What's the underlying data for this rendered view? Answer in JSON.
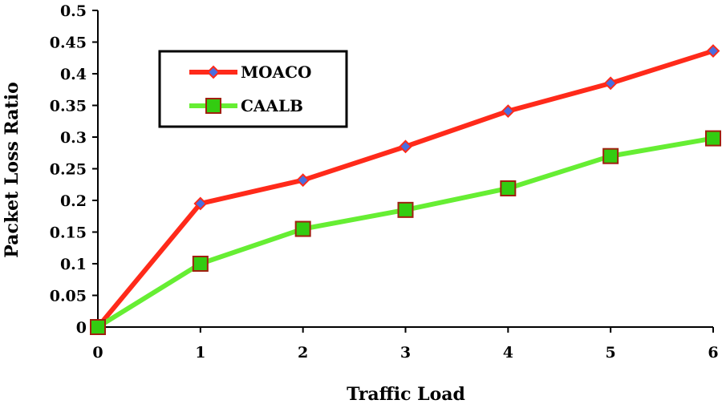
{
  "chart_data": {
    "type": "line",
    "title": "",
    "xlabel": "Traffic Load",
    "ylabel": "Packet Loss Ratio",
    "x": [
      0,
      1,
      2,
      3,
      4,
      5,
      6
    ],
    "xlim": [
      0,
      6
    ],
    "ylim": [
      0,
      0.5
    ],
    "xticks": [
      "0",
      "1",
      "2",
      "3",
      "4",
      "5",
      "6"
    ],
    "yticks": [
      "0",
      "0.05",
      "0.1",
      "0.15",
      "0.2",
      "0.25",
      "0.3",
      "0.35",
      "0.4",
      "0.45",
      "0.5"
    ],
    "grid": false,
    "legend_position": "top-left",
    "series": [
      {
        "name": "MOACO",
        "values": [
          0,
          0.195,
          0.232,
          0.285,
          0.341,
          0.385,
          0.436
        ],
        "line_color": "#ff2a1a",
        "marker": "diamond",
        "marker_fill": "#4a6ee0",
        "marker_stroke": "#ff2a1a"
      },
      {
        "name": "CAALB",
        "values": [
          0,
          0.1,
          0.155,
          0.185,
          0.219,
          0.27,
          0.298
        ],
        "line_color": "#66ee33",
        "marker": "square",
        "marker_fill": "#33cc11",
        "marker_stroke": "#a02010"
      }
    ]
  }
}
